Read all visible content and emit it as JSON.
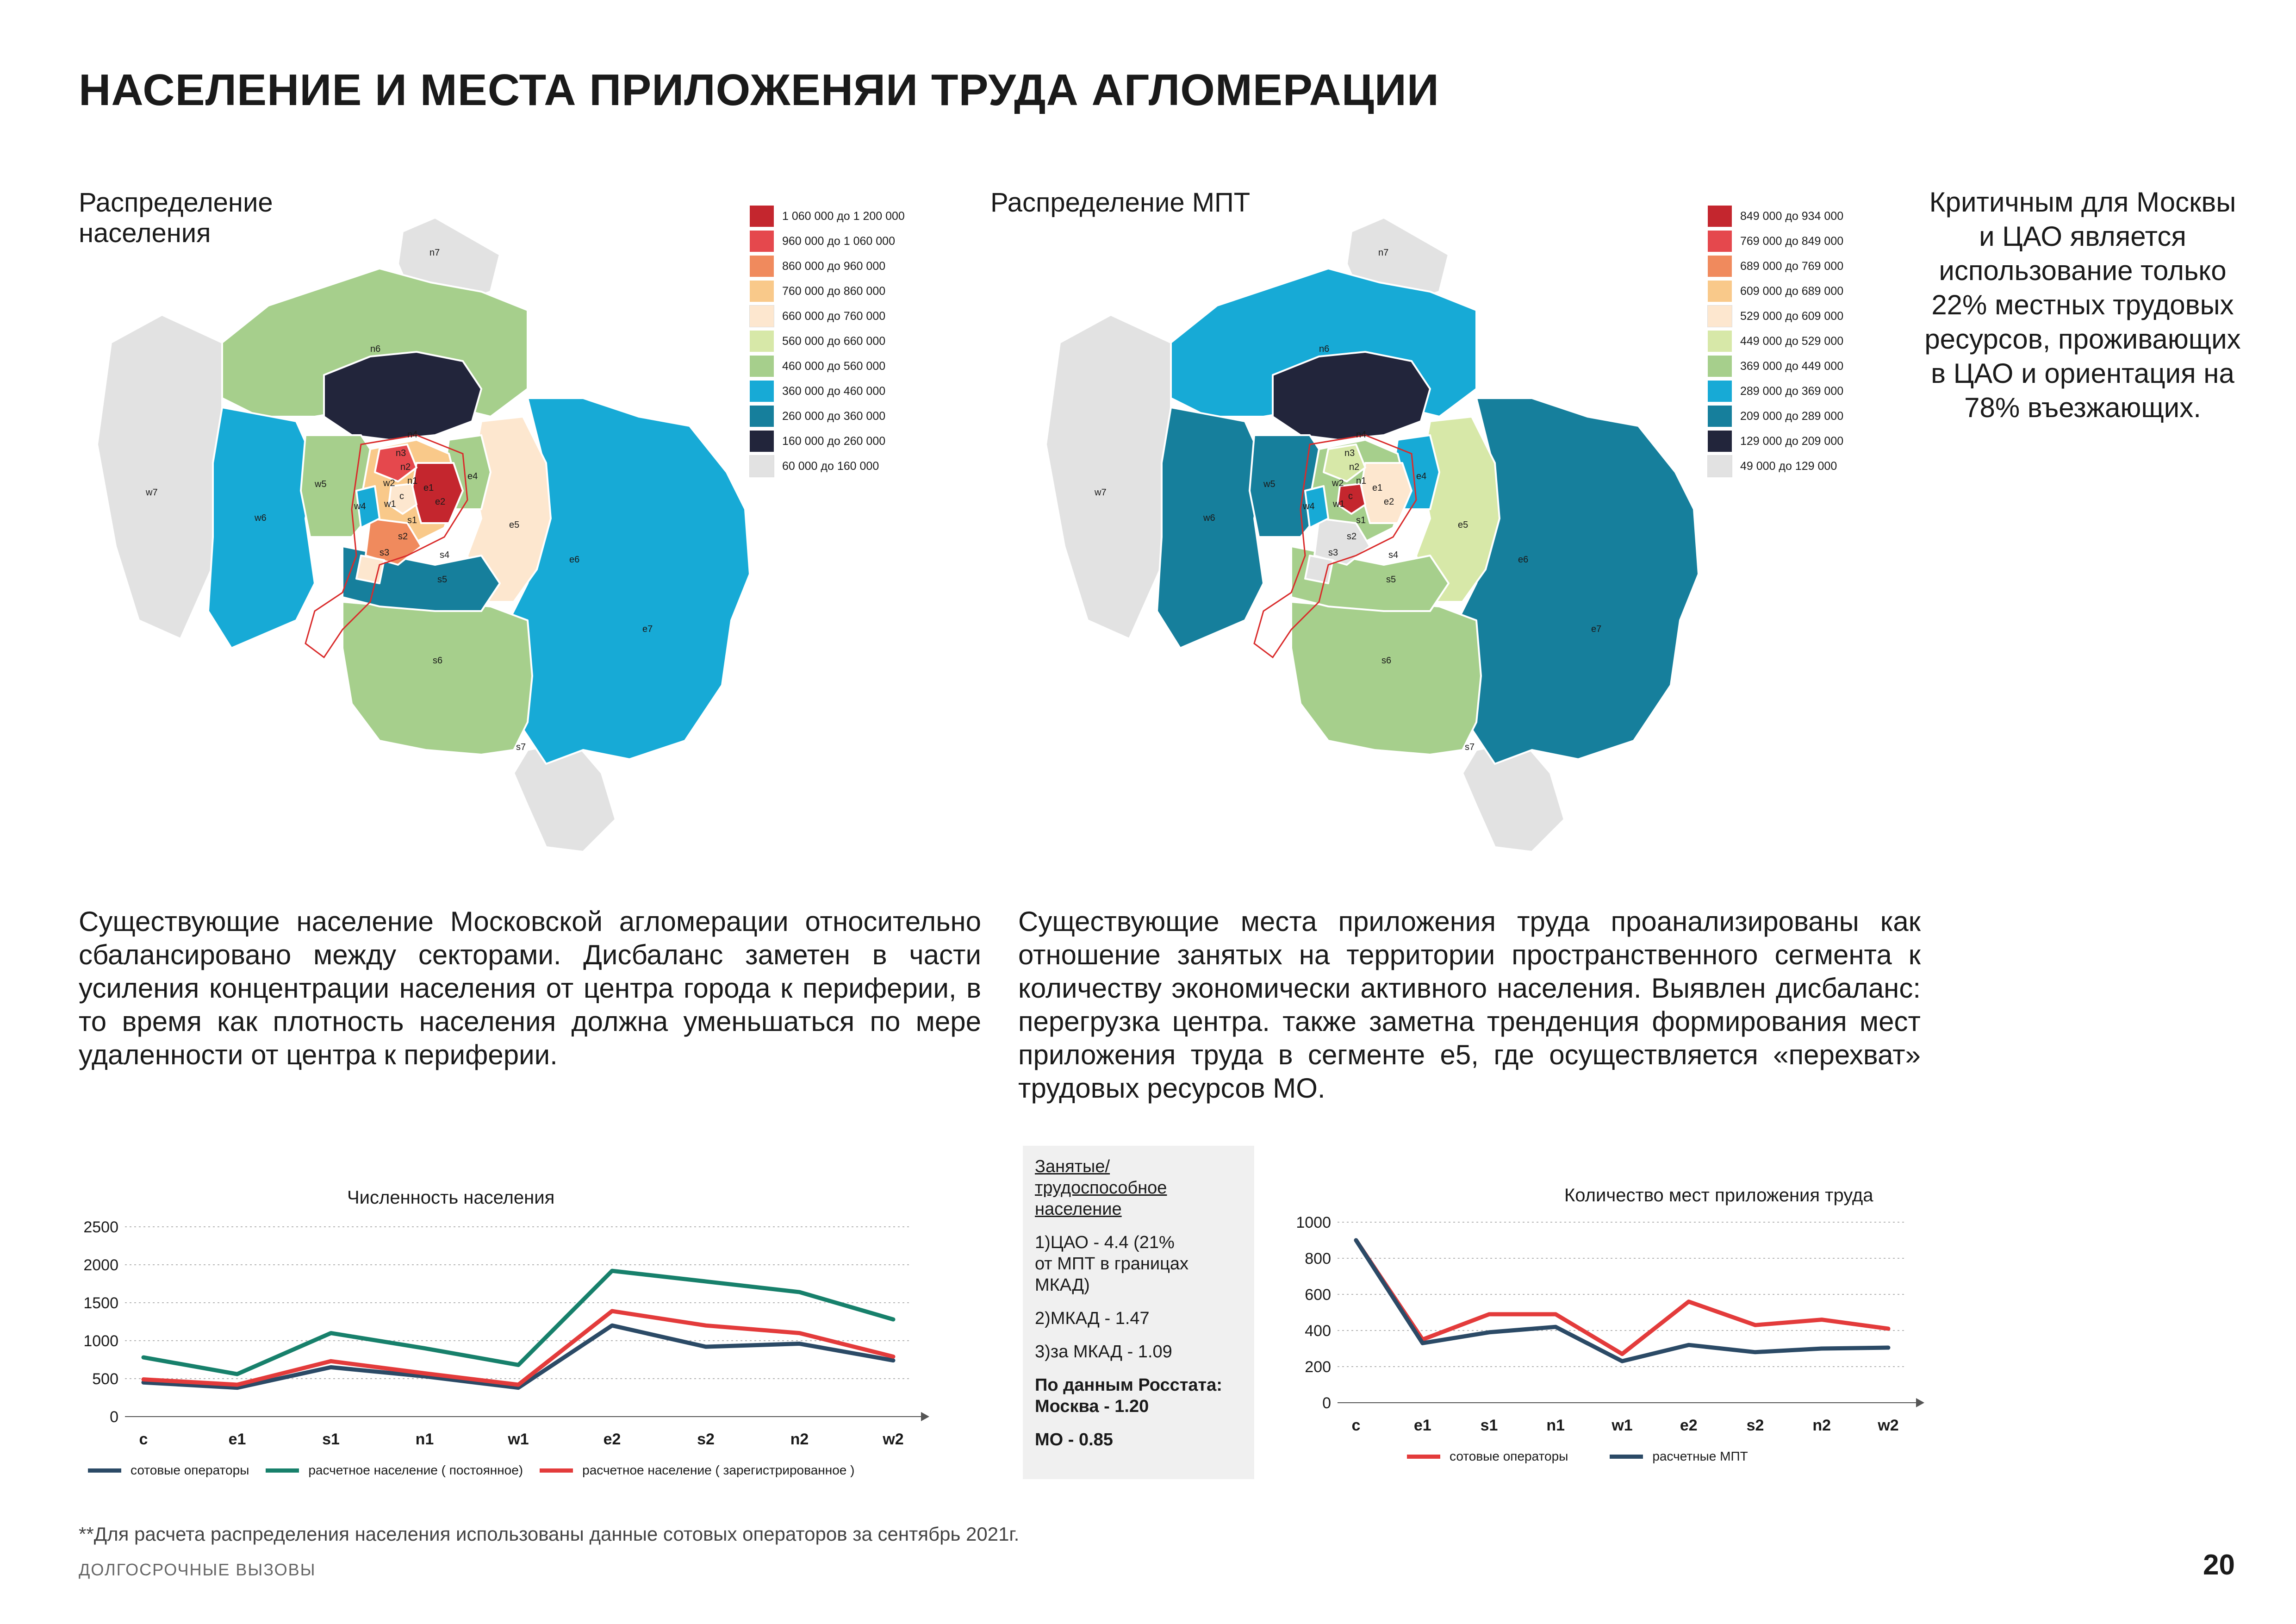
{
  "title": "НАСЕЛЕНИЕ И МЕСТА ПРИЛОЖЕНЯИ ТРУДА АГЛОМЕРАЦИИ",
  "colors": {
    "red_dark": "#c4262e",
    "red": "#e5484d",
    "orange": "#f08a5d",
    "peach": "#f9c98a",
    "cream": "#fde7cf",
    "light_green": "#d7e8a8",
    "green": "#a6cf8c",
    "cyan": "#17aad6",
    "teal": "#167f9c",
    "navy": "#22253b",
    "grey": "#e2e2e2",
    "series_navy": "#2b4a66",
    "series_teal": "#17806b",
    "series_red": "#e33b3b"
  },
  "map_population": {
    "subtitle_lines": [
      "Распределение",
      "населения"
    ],
    "legend": [
      {
        "from": "1 060 000",
        "sep": "до",
        "to": "1 200 000",
        "color": "#c4262e"
      },
      {
        "from": "960 000",
        "sep": "до",
        "to": "1 060 000",
        "color": "#e5484d"
      },
      {
        "from": "860 000",
        "sep": "до",
        "to": "960 000",
        "color": "#f08a5d"
      },
      {
        "from": "760 000",
        "sep": "до",
        "to": "860 000",
        "color": "#f9c98a"
      },
      {
        "from": "660 000",
        "sep": "до",
        "to": "760 000",
        "color": "#fde7cf"
      },
      {
        "from": "560 000",
        "sep": "до",
        "to": "660 000",
        "color": "#d7e8a8"
      },
      {
        "from": "460 000",
        "sep": "до",
        "to": "560 000",
        "color": "#a6cf8c"
      },
      {
        "from": "360 000",
        "sep": "до",
        "to": "460 000",
        "color": "#17aad6"
      },
      {
        "from": "260 000",
        "sep": "до",
        "to": "360 000",
        "color": "#167f9c"
      },
      {
        "from": "160 000",
        "sep": "до",
        "to": "260 000",
        "color": "#22253b"
      },
      {
        "from": "60 000",
        "sep": "до",
        "to": "160 000",
        "color": "#e2e2e2"
      }
    ],
    "labels": {
      "n7": "n7",
      "n6": "n6",
      "n4": "n4",
      "n3": "n3",
      "n2": "n2",
      "n1": "n1",
      "w7": "w7",
      "w6": "w6",
      "w5": "w5",
      "w4": "w4",
      "w2": "w2",
      "w1": "w1",
      "c": "c",
      "e1": "e1",
      "e2": "e2",
      "e4": "e4",
      "e5": "e5",
      "e6": "e6",
      "e7": "e7",
      "s1": "s1",
      "s2": "s2",
      "s3": "s3",
      "s4": "s4",
      "s5": "s5",
      "s6": "s6",
      "s7": "s7"
    }
  },
  "map_mpt": {
    "subtitle": "Распределение МПТ",
    "legend": [
      {
        "from": "849 000",
        "sep": "до",
        "to": "934 000",
        "color": "#c4262e"
      },
      {
        "from": "769 000",
        "sep": "до",
        "to": "849 000",
        "color": "#e5484d"
      },
      {
        "from": "689 000",
        "sep": "до",
        "to": "769 000",
        "color": "#f08a5d"
      },
      {
        "from": "609 000",
        "sep": "до",
        "to": "689 000",
        "color": "#f9c98a"
      },
      {
        "from": "529 000",
        "sep": "до",
        "to": "609 000",
        "color": "#fde7cf"
      },
      {
        "from": "449 000",
        "sep": "до",
        "to": "529 000",
        "color": "#d7e8a8"
      },
      {
        "from": "369 000",
        "sep": "до",
        "to": "449 000",
        "color": "#a6cf8c"
      },
      {
        "from": "289 000",
        "sep": "до",
        "to": "369 000",
        "color": "#17aad6"
      },
      {
        "from": "209 000",
        "sep": "до",
        "to": "289 000",
        "color": "#167f9c"
      },
      {
        "from": "129 000",
        "sep": "до",
        "to": "209 000",
        "color": "#22253b"
      },
      {
        "from": "49 000",
        "sep": "до",
        "to": "129 000",
        "color": "#e2e2e2"
      }
    ]
  },
  "callout_lines": [
    "Критичным для Москвы",
    "и ЦАО является",
    "использование только",
    "22% местных трудовых",
    "ресурсов, проживающих",
    "в ЦАО и ориентация на",
    "78% въезжающих."
  ],
  "para_population": "Существующие население Московской агломерации относительно сбалансировано между секторами. Дисбаланс заметен в части усиления концентрации населения от центра города к периферии, в то время как плотность населения должна уменьшаться по мере удаленности от центра к периферии.",
  "para_mpt": "Существующие места приложения труда проанализированы как отношение занятых на территории пространственного сегмента к количеству экономически активного населения. Выявлен дисбаланс: перегрузка центра. также заметна тренденция формирования мест приложения труда в сегменте e5, где осуществляется «перехват» трудовых ресурсов МО.",
  "ratio_box": {
    "heading_lines": [
      "Занятые/",
      "трудоспособное ",
      "население"
    ],
    "item1_lines": [
      "1)ЦАО  - 4.4 (21%",
      "от МПТ в границах",
      "МКАД)"
    ],
    "item2": "2)МКАД - 1.47",
    "item3": "3)за МКАД - 1.09",
    "rosstat_lines": [
      "По данным Росстата:",
      "Москва -  1.20"
    ],
    "mo": "МО -  0.85"
  },
  "chart_data": [
    {
      "type": "line",
      "title": "Численность населения",
      "categories": [
        "c",
        "e1",
        "s1",
        "n1",
        "w1",
        "e2",
        "s2",
        "n2",
        "w2"
      ],
      "ylim": [
        0,
        2500
      ],
      "yticks": [
        0,
        500,
        1000,
        1500,
        2000,
        2500
      ],
      "grid": true,
      "legend_position": "bottom",
      "series": [
        {
          "name": "сотовые операторы",
          "color": "#2b4a66",
          "values": [
            450,
            380,
            650,
            530,
            380,
            1200,
            920,
            960,
            740
          ]
        },
        {
          "name": "расчетное население ( постоянное)",
          "color": "#17806b",
          "values": [
            780,
            560,
            1100,
            900,
            680,
            1920,
            1780,
            1640,
            1280
          ]
        },
        {
          "name": "расчетное население ( зарегистрированное )",
          "color": "#e33b3b",
          "values": [
            490,
            420,
            730,
            570,
            420,
            1390,
            1200,
            1100,
            790
          ]
        }
      ]
    },
    {
      "type": "line",
      "title": "Количество мест приложения труда",
      "categories": [
        "c",
        "e1",
        "s1",
        "n1",
        "w1",
        "e2",
        "s2",
        "n2",
        "w2"
      ],
      "ylim": [
        0,
        1000
      ],
      "yticks": [
        0,
        200,
        400,
        600,
        800,
        1000
      ],
      "grid": true,
      "legend_position": "bottom",
      "series": [
        {
          "name": "сотовые операторы",
          "color": "#e33b3b",
          "values": [
            900,
            350,
            490,
            490,
            270,
            560,
            430,
            460,
            410
          ]
        },
        {
          "name": "расчетные МПТ",
          "color": "#2b4a66",
          "values": [
            900,
            330,
            390,
            420,
            230,
            320,
            280,
            300,
            305
          ]
        }
      ]
    }
  ],
  "footnote": "**Для расчета распределения населения использованы данные сотовых операторов за сентябрь 2021г.",
  "footer_label": "ДОЛГОСРОЧНЫЕ ВЫЗОВЫ",
  "page_number": "20"
}
